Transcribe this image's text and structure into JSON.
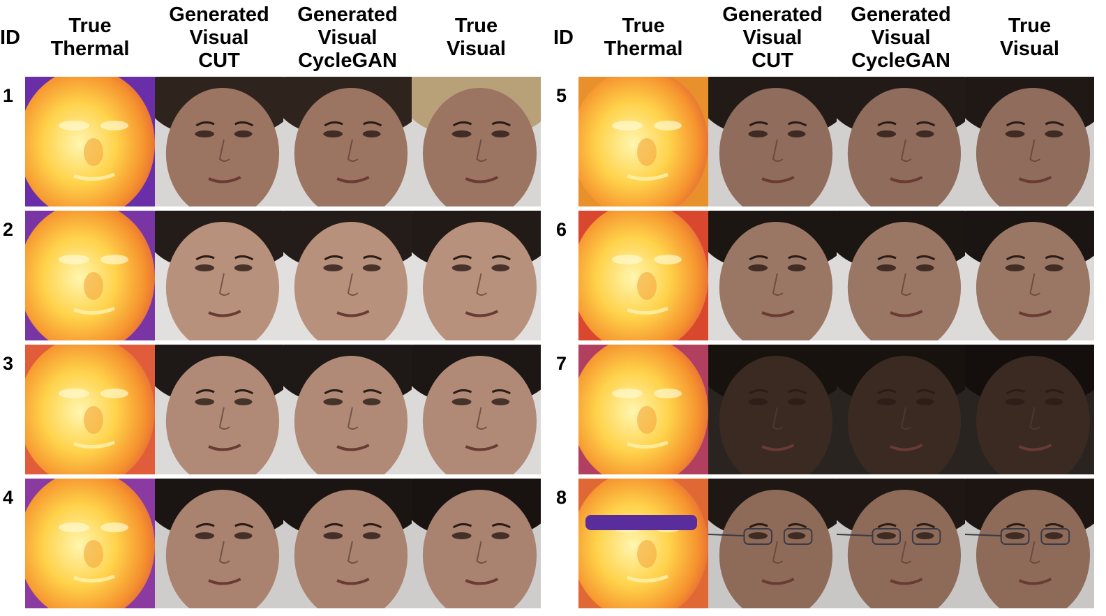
{
  "headers": {
    "id": "ID",
    "true_thermal": [
      "True",
      "Thermal"
    ],
    "generated_cut": [
      "Generated",
      "Visual",
      "CUT"
    ],
    "generated_cyclegan": [
      "Generated",
      "Visual",
      "CycleGAN"
    ],
    "true_visual": [
      "True",
      "Visual"
    ]
  },
  "panels": [
    {
      "rows": [
        {
          "id": "1",
          "skin": "#9c7462",
          "hair": "#2e241d",
          "bg": "#d8d6d4",
          "vis_hair": "#b8a078",
          "thermal_bg": "#6a2fa8"
        },
        {
          "id": "2",
          "skin": "#b8917c",
          "hair": "#241c18",
          "bg": "#e2e0de",
          "vis_hair": "#221a16",
          "thermal_bg": "#7a35a5"
        },
        {
          "id": "3",
          "skin": "#b08a76",
          "hair": "#1e1816",
          "bg": "#dcdad8",
          "vis_hair": "#1c1614",
          "thermal_bg": "#e05c3a"
        },
        {
          "id": "4",
          "skin": "#a98270",
          "hair": "#1a1412",
          "bg": "#cfcdcc",
          "vis_hair": "#181210",
          "thermal_bg": "#8a3aa0"
        }
      ]
    },
    {
      "rows": [
        {
          "id": "5",
          "skin": "#8f6c5c",
          "hair": "#221a16",
          "bg": "#d2d0ce",
          "vis_hair": "#201814",
          "thermal_bg": "#e8902c"
        },
        {
          "id": "6",
          "skin": "#9a7664",
          "hair": "#1c1613",
          "bg": "#dddbd9",
          "vis_hair": "#1a1412",
          "thermal_bg": "#d9482e"
        },
        {
          "id": "7",
          "skin": "#3a2a22",
          "hair": "#18120f",
          "bg": "#2a2420",
          "vis_hair": "#140f0c",
          "thermal_bg": "#b03f60"
        },
        {
          "id": "8",
          "skin": "#8e6b58",
          "hair": "#1e1714",
          "bg": "#c9c7c5",
          "vis_hair": "#1c1512",
          "thermal_bg": "#e06834"
        }
      ]
    }
  ]
}
